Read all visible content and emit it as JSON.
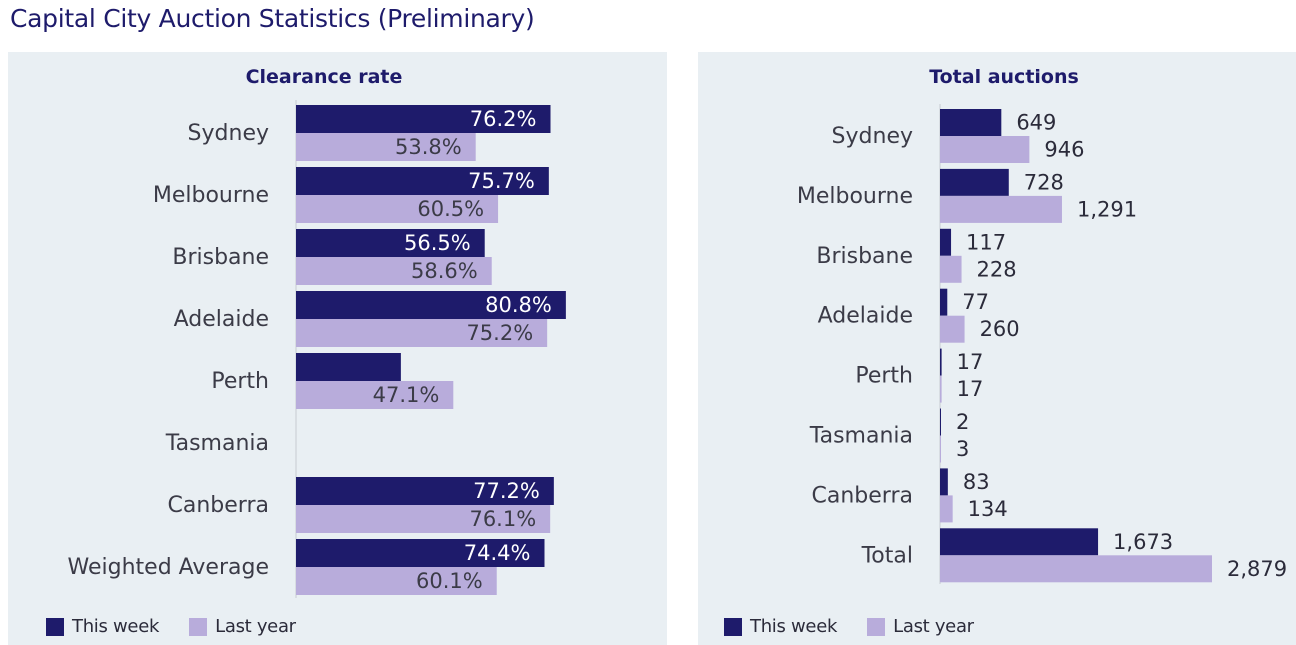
{
  "page_title": "Capital City Auction Statistics (Preliminary)",
  "colors": {
    "this_week": "#1e1b6b",
    "last_year": "#b8acdb",
    "panel_bg": "#e9eff3"
  },
  "legend": {
    "this_week": "This week",
    "last_year": "Last year"
  },
  "chart_data": [
    {
      "type": "bar",
      "orientation": "horizontal",
      "title": "Clearance rate",
      "categories": [
        "Sydney",
        "Melbourne",
        "Brisbane",
        "Adelaide",
        "Perth",
        "Tasmania",
        "Canberra",
        "Weighted Average"
      ],
      "series": [
        {
          "name": "This week",
          "values": [
            76.2,
            75.7,
            56.5,
            80.8,
            31.4,
            null,
            77.2,
            74.4
          ],
          "labels": [
            "76.2%",
            "75.7%",
            "56.5%",
            "80.8%",
            "",
            "",
            "77.2%",
            "74.4%"
          ]
        },
        {
          "name": "Last year",
          "values": [
            53.8,
            60.5,
            58.6,
            75.2,
            47.1,
            null,
            76.1,
            60.1
          ],
          "labels": [
            "53.8%",
            "60.5%",
            "58.6%",
            "75.2%",
            "47.1%",
            "",
            "76.1%",
            "60.1%"
          ]
        }
      ],
      "xlim": [
        0,
        100
      ],
      "grid": false
    },
    {
      "type": "bar",
      "orientation": "horizontal",
      "title": "Total auctions",
      "categories": [
        "Sydney",
        "Melbourne",
        "Brisbane",
        "Adelaide",
        "Perth",
        "Tasmania",
        "Canberra",
        "Total"
      ],
      "series": [
        {
          "name": "This week",
          "values": [
            649,
            728,
            117,
            77,
            17,
            2,
            83,
            1673
          ],
          "labels": [
            "649",
            "728",
            "117",
            "77",
            "17",
            "2",
            "83",
            "1,673"
          ]
        },
        {
          "name": "Last year",
          "values": [
            946,
            1291,
            228,
            260,
            17,
            3,
            134,
            2879
          ],
          "labels": [
            "946",
            "1,291",
            "228",
            "260",
            "17",
            "3",
            "134",
            "2,879"
          ]
        }
      ],
      "xlim": [
        0,
        2879
      ],
      "grid": false
    }
  ]
}
